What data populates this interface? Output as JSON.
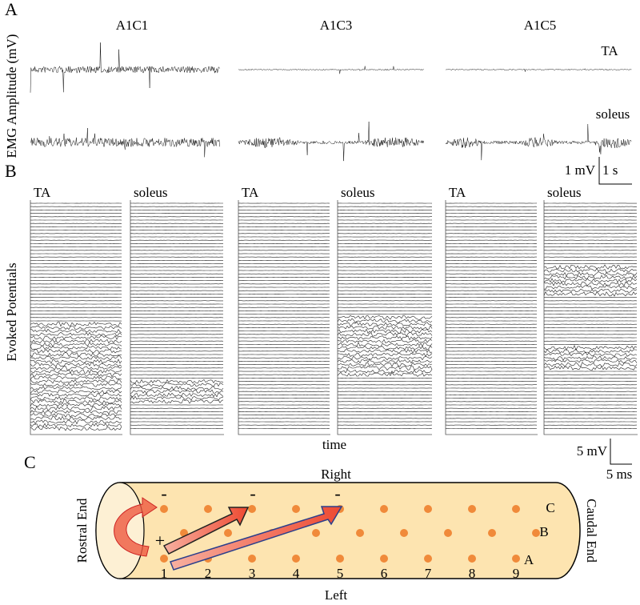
{
  "panels": {
    "a": {
      "label": "A",
      "y_label": "EMG Amplitude (mV)",
      "columns": [
        "A1C1",
        "A1C3",
        "A1C5"
      ],
      "muscles": [
        "TA",
        "soleus"
      ],
      "scale": {
        "amplitude": "1 mV",
        "time": "1 s"
      }
    },
    "b": {
      "label": "B",
      "y_label": "Evoked Potentials",
      "x_label": "time",
      "columns": [
        {
          "left": "TA",
          "right": "soleus"
        },
        {
          "left": "TA",
          "right": "soleus"
        },
        {
          "left": "TA",
          "right": "soleus"
        }
      ],
      "scale": {
        "amplitude": "5 mV",
        "time": "5 ms"
      }
    },
    "c": {
      "label": "C",
      "top": "Right",
      "bottom": "Left",
      "left_end": "Rostral End",
      "right_end": "Caudal End",
      "columns": [
        "1",
        "2",
        "3",
        "4",
        "5",
        "6",
        "7",
        "8",
        "9"
      ],
      "rows": [
        "C",
        "B",
        "A"
      ],
      "cathodes": [
        "-",
        "-",
        "-"
      ],
      "anode": "+"
    }
  }
}
